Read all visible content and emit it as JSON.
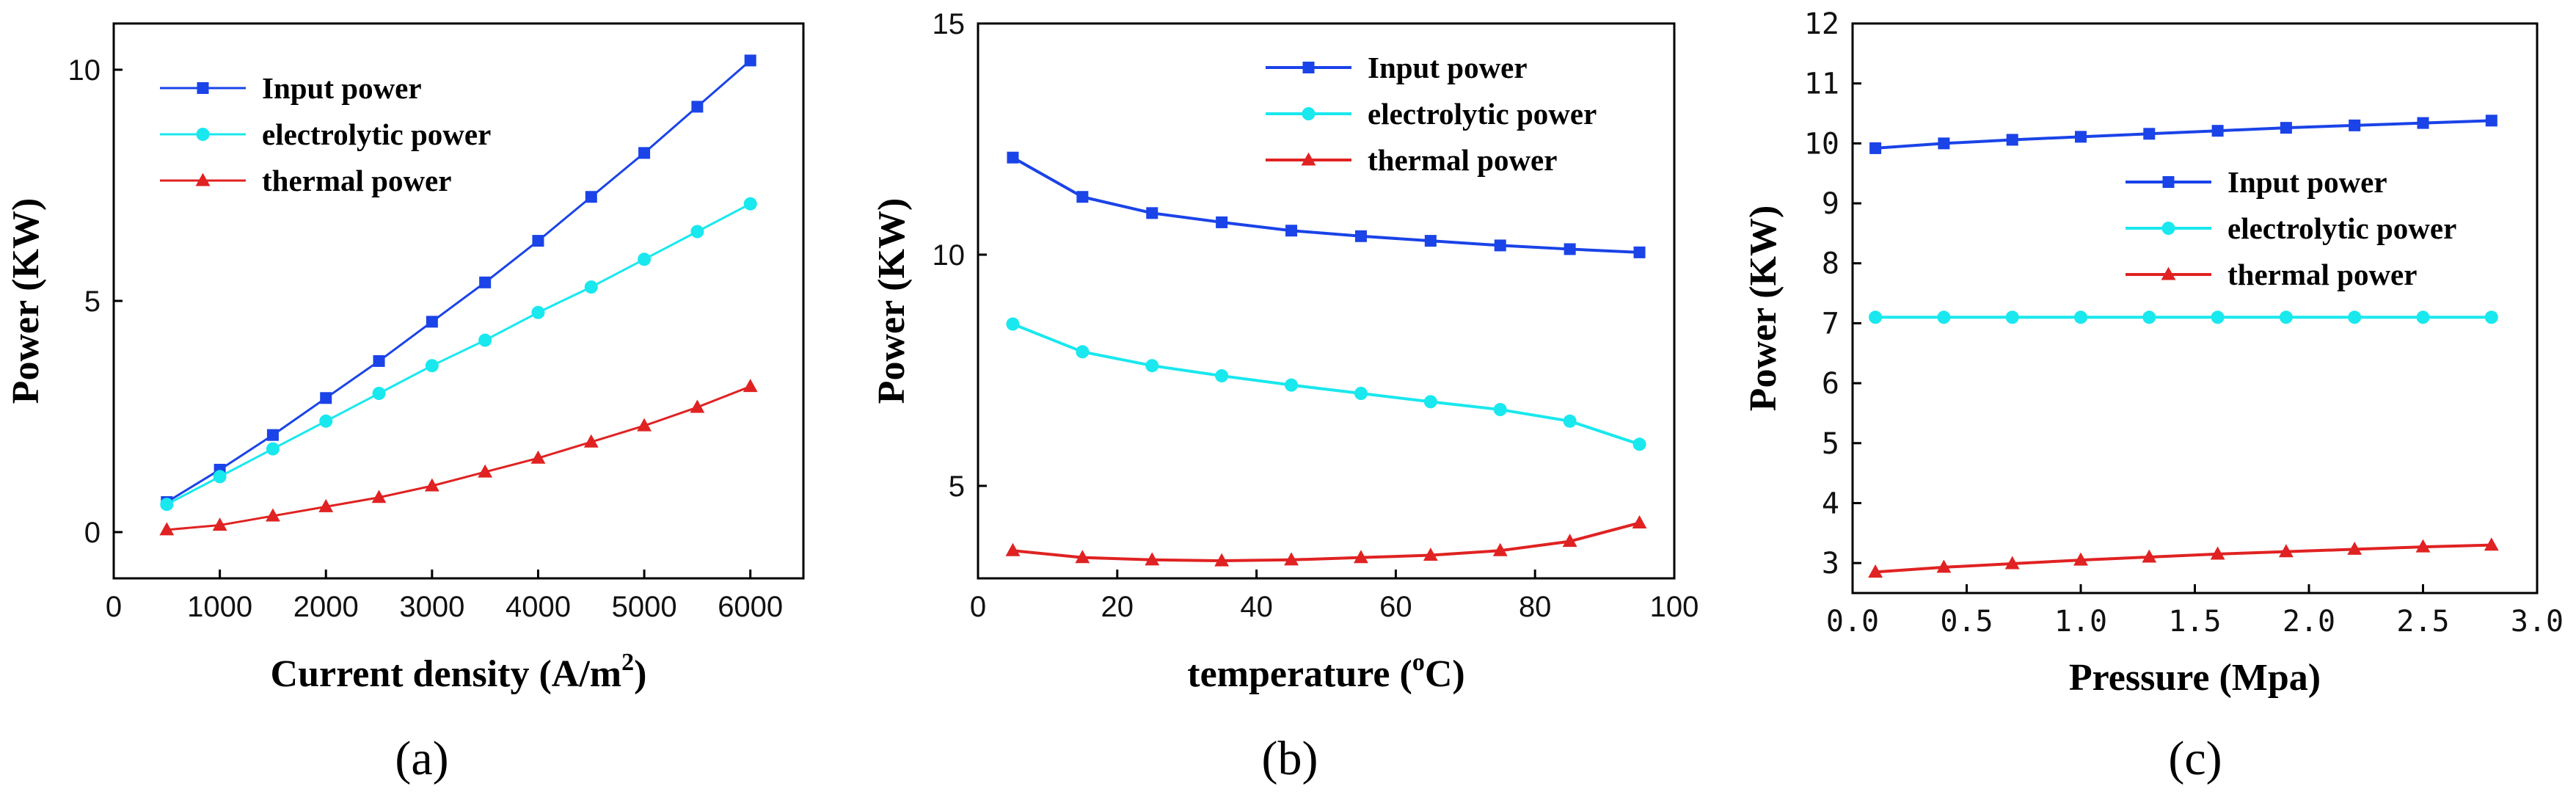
{
  "colors": {
    "input": "#1a43e8",
    "electrolytic": "#19e8ee",
    "thermal": "#e02222",
    "axis": "#000000"
  },
  "chart_data": [
    {
      "type": "line",
      "panel_label": "(a)",
      "xlabel": "Current density (A/m",
      "xlabel_sup": "2",
      "xlabel_tail": ")",
      "ylabel": "Power (KW)",
      "xlim": [
        0,
        6500
      ],
      "ylim": [
        -1,
        11
      ],
      "xticks": [
        0,
        1000,
        2000,
        3000,
        4000,
        5000,
        6000
      ],
      "xtick_labels": [
        "0",
        "1000",
        "2000",
        "3000",
        "4000",
        "5000",
        "6000"
      ],
      "yticks": [
        0,
        5,
        10
      ],
      "ytick_labels": [
        "0",
        "5",
        "10"
      ],
      "legend_position": "top-left",
      "x": [
        500,
        1000,
        1500,
        2000,
        2500,
        3000,
        3500,
        4000,
        4500,
        5000,
        5500,
        6000
      ],
      "series": [
        {
          "name": "Input power",
          "key": "input",
          "marker": "square",
          "values": [
            0.65,
            1.35,
            2.1,
            2.9,
            3.7,
            4.55,
            5.4,
            6.3,
            7.25,
            8.2,
            9.2,
            10.2
          ]
        },
        {
          "name": "electrolytic power",
          "key": "electrolytic",
          "marker": "circle",
          "values": [
            0.6,
            1.2,
            1.8,
            2.4,
            3.0,
            3.6,
            4.15,
            4.75,
            5.3,
            5.9,
            6.5,
            7.1
          ]
        },
        {
          "name": "thermal power",
          "key": "thermal",
          "marker": "triangle",
          "values": [
            0.05,
            0.15,
            0.35,
            0.55,
            0.75,
            1.0,
            1.3,
            1.6,
            1.95,
            2.3,
            2.7,
            3.15
          ]
        }
      ]
    },
    {
      "type": "line",
      "panel_label": "(b)",
      "xlabel": "temperature (",
      "xlabel_sup": "o",
      "xlabel_tail": "C)",
      "ylabel": "Power (KW)",
      "xlim": [
        0,
        100
      ],
      "ylim": [
        3,
        15
      ],
      "xticks": [
        0,
        20,
        40,
        60,
        80,
        100
      ],
      "xtick_labels": [
        "0",
        "20",
        "40",
        "60",
        "80",
        "100"
      ],
      "yticks": [
        5,
        10,
        15
      ],
      "ytick_labels": [
        "5",
        "10",
        "15"
      ],
      "legend_position": "top-right",
      "x": [
        5,
        15,
        25,
        35,
        45,
        55,
        65,
        75,
        85,
        95
      ],
      "series": [
        {
          "name": "Input power",
          "key": "input",
          "marker": "square",
          "values": [
            12.1,
            11.25,
            10.9,
            10.7,
            10.52,
            10.4,
            10.3,
            10.2,
            10.12,
            10.05
          ]
        },
        {
          "name": "electrolytic power",
          "key": "electrolytic",
          "marker": "circle",
          "values": [
            8.5,
            7.9,
            7.6,
            7.38,
            7.18,
            7.0,
            6.82,
            6.65,
            6.4,
            5.9
          ]
        },
        {
          "name": "thermal power",
          "key": "thermal",
          "marker": "triangle",
          "values": [
            3.6,
            3.45,
            3.4,
            3.38,
            3.4,
            3.45,
            3.5,
            3.6,
            3.8,
            4.2
          ]
        }
      ]
    },
    {
      "type": "line",
      "panel_label": "(c)",
      "xlabel": "Pressure (Mpa)",
      "xlabel_sup": "",
      "xlabel_tail": "",
      "ylabel": "Power (KW)",
      "xlim": [
        0.0,
        3.0
      ],
      "ylim": [
        2.5,
        12
      ],
      "xticks": [
        0.0,
        0.5,
        1.0,
        1.5,
        2.0,
        2.5,
        3.0
      ],
      "xtick_labels": [
        "0.0",
        "0.5",
        "1.0",
        "1.5",
        "2.0",
        "2.5",
        "3.0"
      ],
      "yticks": [
        3,
        4,
        5,
        6,
        7,
        8,
        9,
        10,
        11,
        12
      ],
      "ytick_labels": [
        "3",
        "4",
        "5",
        "6",
        "7",
        "8",
        "9",
        "10",
        "11",
        "12"
      ],
      "legend_position": "middle-right",
      "x": [
        0.1,
        0.4,
        0.7,
        1.0,
        1.3,
        1.6,
        1.9,
        2.2,
        2.5,
        2.8
      ],
      "series": [
        {
          "name": "Input power",
          "key": "input",
          "marker": "square",
          "values": [
            9.92,
            10.0,
            10.06,
            10.11,
            10.16,
            10.21,
            10.26,
            10.3,
            10.34,
            10.38
          ]
        },
        {
          "name": "electrolytic power",
          "key": "electrolytic",
          "marker": "circle",
          "values": [
            7.1,
            7.1,
            7.1,
            7.1,
            7.1,
            7.1,
            7.1,
            7.1,
            7.1,
            7.1
          ]
        },
        {
          "name": "thermal power",
          "key": "thermal",
          "marker": "triangle",
          "values": [
            2.85,
            2.93,
            2.99,
            3.05,
            3.1,
            3.15,
            3.19,
            3.23,
            3.27,
            3.3
          ]
        }
      ]
    }
  ]
}
